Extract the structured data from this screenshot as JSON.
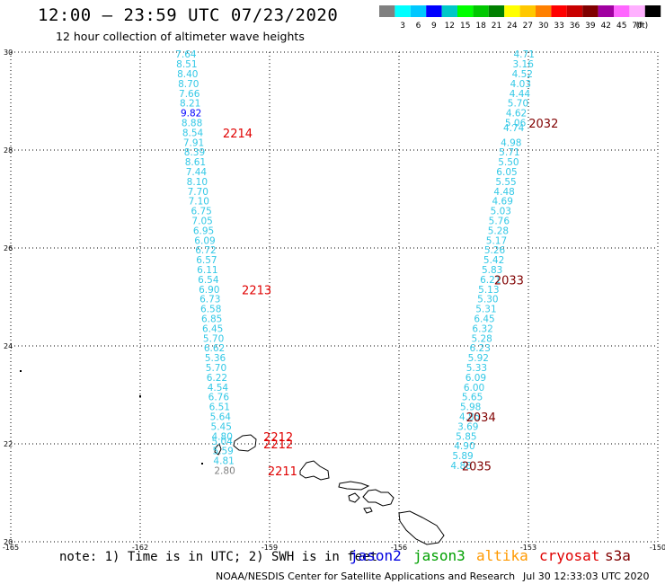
{
  "title": "12:00 – 23:59 UTC 07/23/2020",
  "subtitle": "12 hour collection of altimeter wave heights",
  "colorbar": {
    "unit_label": "(ft)",
    "bins": [
      {
        "label": "",
        "color": "#808080"
      },
      {
        "label": "3",
        "color": "#00ffff"
      },
      {
        "label": "6",
        "color": "#00c8ff"
      },
      {
        "label": "9",
        "color": "#0000ff"
      },
      {
        "label": "12",
        "color": "#00c8c8"
      },
      {
        "label": "15",
        "color": "#00ff00"
      },
      {
        "label": "18",
        "color": "#00c800"
      },
      {
        "label": "21",
        "color": "#008000"
      },
      {
        "label": "24",
        "color": "#ffff00"
      },
      {
        "label": "27",
        "color": "#ffc800"
      },
      {
        "label": "30",
        "color": "#ff8000"
      },
      {
        "label": "33",
        "color": "#ff0000"
      },
      {
        "label": "36",
        "color": "#c80000"
      },
      {
        "label": "39",
        "color": "#800000"
      },
      {
        "label": "42",
        "color": "#a000a0"
      },
      {
        "label": "45",
        "color": "#ff66ff"
      },
      {
        "label": "70",
        "color": "#ffb0ff"
      },
      {
        "label": "",
        "color": "#000000"
      }
    ]
  },
  "axes": {
    "lat_ticks": [
      "30",
      "28",
      "26",
      "24",
      "22",
      "20"
    ],
    "lon_ticks": [
      "-165",
      "-162",
      "-159",
      "-156",
      "-153",
      "-150"
    ],
    "lat_range": [
      20,
      30
    ],
    "lon_range": [
      -165,
      -150
    ]
  },
  "colors": {
    "swh_default": "#33c8e6",
    "swh_high": "#0000ff",
    "swh_low": "#808080",
    "time_west": "#e00000",
    "time_east": "#800000"
  },
  "west_pass": {
    "readings": [
      {
        "lon": -160.94,
        "lat": 29.95,
        "swh": "7.64"
      },
      {
        "lon": -160.92,
        "lat": 29.75,
        "swh": "8.51"
      },
      {
        "lon": -160.9,
        "lat": 29.55,
        "swh": "8.40"
      },
      {
        "lon": -160.88,
        "lat": 29.35,
        "swh": "8.70"
      },
      {
        "lon": -160.86,
        "lat": 29.15,
        "swh": "7.66"
      },
      {
        "lon": -160.84,
        "lat": 28.95,
        "swh": "8.21"
      },
      {
        "lon": -160.82,
        "lat": 28.75,
        "swh": "9.82",
        "level": "high"
      },
      {
        "lon": -160.8,
        "lat": 28.55,
        "swh": "8.88"
      },
      {
        "lon": -160.78,
        "lat": 28.35,
        "swh": "8.54"
      },
      {
        "lon": -160.76,
        "lat": 28.15,
        "swh": "7.91"
      },
      {
        "lon": -160.74,
        "lat": 27.95,
        "swh": "8.39"
      },
      {
        "lon": -160.72,
        "lat": 27.75,
        "swh": "8.61"
      },
      {
        "lon": -160.7,
        "lat": 27.55,
        "swh": "7.44"
      },
      {
        "lon": -160.68,
        "lat": 27.35,
        "swh": "8.10"
      },
      {
        "lon": -160.66,
        "lat": 27.15,
        "swh": "7.70"
      },
      {
        "lon": -160.64,
        "lat": 26.95,
        "swh": "7.10"
      },
      {
        "lon": -160.58,
        "lat": 26.75,
        "swh": "6.75"
      },
      {
        "lon": -160.56,
        "lat": 26.55,
        "swh": "7.05"
      },
      {
        "lon": -160.53,
        "lat": 26.35,
        "swh": "6.95"
      },
      {
        "lon": -160.5,
        "lat": 26.15,
        "swh": "6.09"
      },
      {
        "lon": -160.48,
        "lat": 25.95,
        "swh": "6.72"
      },
      {
        "lon": -160.46,
        "lat": 25.75,
        "swh": "6.57"
      },
      {
        "lon": -160.44,
        "lat": 25.55,
        "swh": "6.11"
      },
      {
        "lon": -160.42,
        "lat": 25.35,
        "swh": "6.54"
      },
      {
        "lon": -160.4,
        "lat": 25.15,
        "swh": "6.90"
      },
      {
        "lon": -160.38,
        "lat": 24.95,
        "swh": "6.73"
      },
      {
        "lon": -160.36,
        "lat": 24.75,
        "swh": "6.58"
      },
      {
        "lon": -160.34,
        "lat": 24.55,
        "swh": "6.85"
      },
      {
        "lon": -160.32,
        "lat": 24.35,
        "swh": "6.45"
      },
      {
        "lon": -160.3,
        "lat": 24.15,
        "swh": "5.70"
      },
      {
        "lon": -160.28,
        "lat": 23.95,
        "swh": "6.62"
      },
      {
        "lon": -160.26,
        "lat": 23.75,
        "swh": "5.36"
      },
      {
        "lon": -160.24,
        "lat": 23.55,
        "swh": "5.70"
      },
      {
        "lon": -160.22,
        "lat": 23.35,
        "swh": "6.22"
      },
      {
        "lon": -160.2,
        "lat": 23.15,
        "swh": "4.54"
      },
      {
        "lon": -160.18,
        "lat": 22.95,
        "swh": "6.76"
      },
      {
        "lon": -160.16,
        "lat": 22.75,
        "swh": "6.51"
      },
      {
        "lon": -160.14,
        "lat": 22.55,
        "swh": "5.64"
      },
      {
        "lon": -160.12,
        "lat": 22.35,
        "swh": "5.45"
      },
      {
        "lon": -160.1,
        "lat": 22.15,
        "swh": "4.80"
      },
      {
        "lon": -160.1,
        "lat": 22.05,
        "swh": "5.04"
      },
      {
        "lon": -160.08,
        "lat": 21.85,
        "swh": "5.59"
      },
      {
        "lon": -160.06,
        "lat": 21.65,
        "swh": "4.81"
      },
      {
        "lon": -160.04,
        "lat": 21.45,
        "swh": "2.80",
        "level": "low"
      }
    ],
    "time_labels": [
      {
        "lon": -159.74,
        "lat": 28.35,
        "text": "2214"
      },
      {
        "lon": -159.3,
        "lat": 25.15,
        "text": "2213"
      },
      {
        "lon": -158.8,
        "lat": 22.15,
        "text": "2212"
      },
      {
        "lon": -158.8,
        "lat": 22.0,
        "text": "2212"
      },
      {
        "lon": -158.7,
        "lat": 21.45,
        "text": "2211"
      }
    ]
  },
  "east_pass": {
    "readings": [
      {
        "lon": -153.1,
        "lat": 29.95,
        "swh": "4.71"
      },
      {
        "lon": -153.12,
        "lat": 29.75,
        "swh": "3.16"
      },
      {
        "lon": -153.14,
        "lat": 29.55,
        "swh": "4.52"
      },
      {
        "lon": -153.18,
        "lat": 29.35,
        "swh": "4.03"
      },
      {
        "lon": -153.2,
        "lat": 29.15,
        "swh": "4.44"
      },
      {
        "lon": -153.24,
        "lat": 28.95,
        "swh": "5.70"
      },
      {
        "lon": -153.28,
        "lat": 28.75,
        "swh": "4.62"
      },
      {
        "lon": -153.3,
        "lat": 28.55,
        "swh": "5.06"
      },
      {
        "lon": -153.34,
        "lat": 28.45,
        "swh": "4.74"
      },
      {
        "lon": -153.4,
        "lat": 28.15,
        "swh": "4.98"
      },
      {
        "lon": -153.44,
        "lat": 27.95,
        "swh": "5.71"
      },
      {
        "lon": -153.46,
        "lat": 27.75,
        "swh": "5.50"
      },
      {
        "lon": -153.5,
        "lat": 27.55,
        "swh": "6.05"
      },
      {
        "lon": -153.52,
        "lat": 27.35,
        "swh": "5.55"
      },
      {
        "lon": -153.56,
        "lat": 27.15,
        "swh": "4.48"
      },
      {
        "lon": -153.6,
        "lat": 26.95,
        "swh": "4.69"
      },
      {
        "lon": -153.64,
        "lat": 26.75,
        "swh": "5.03"
      },
      {
        "lon": -153.68,
        "lat": 26.55,
        "swh": "5.76"
      },
      {
        "lon": -153.7,
        "lat": 26.35,
        "swh": "5.28"
      },
      {
        "lon": -153.74,
        "lat": 26.15,
        "swh": "5.17"
      },
      {
        "lon": -153.78,
        "lat": 25.95,
        "swh": "5.26"
      },
      {
        "lon": -153.8,
        "lat": 25.75,
        "swh": "5.42"
      },
      {
        "lon": -153.84,
        "lat": 25.55,
        "swh": "5.83"
      },
      {
        "lon": -153.88,
        "lat": 25.35,
        "swh": "6.21"
      },
      {
        "lon": -153.92,
        "lat": 25.15,
        "swh": "5.13"
      },
      {
        "lon": -153.94,
        "lat": 24.95,
        "swh": "5.30"
      },
      {
        "lon": -153.98,
        "lat": 24.75,
        "swh": "5.31"
      },
      {
        "lon": -154.02,
        "lat": 24.55,
        "swh": "6.45"
      },
      {
        "lon": -154.06,
        "lat": 24.35,
        "swh": "6.32"
      },
      {
        "lon": -154.08,
        "lat": 24.15,
        "swh": "5.28"
      },
      {
        "lon": -154.12,
        "lat": 23.95,
        "swh": "6.23"
      },
      {
        "lon": -154.16,
        "lat": 23.75,
        "swh": "5.92"
      },
      {
        "lon": -154.2,
        "lat": 23.55,
        "swh": "5.33"
      },
      {
        "lon": -154.22,
        "lat": 23.35,
        "swh": "6.09"
      },
      {
        "lon": -154.26,
        "lat": 23.15,
        "swh": "6.00"
      },
      {
        "lon": -154.3,
        "lat": 22.95,
        "swh": "5.65"
      },
      {
        "lon": -154.34,
        "lat": 22.75,
        "swh": "5.98"
      },
      {
        "lon": -154.36,
        "lat": 22.55,
        "swh": "4.85"
      },
      {
        "lon": -154.4,
        "lat": 22.35,
        "swh": "3.69"
      },
      {
        "lon": -154.44,
        "lat": 22.15,
        "swh": "5.85"
      },
      {
        "lon": -154.48,
        "lat": 21.95,
        "swh": "4.90"
      },
      {
        "lon": -154.52,
        "lat": 21.75,
        "swh": "5.89"
      },
      {
        "lon": -154.56,
        "lat": 21.55,
        "swh": "4.88"
      }
    ],
    "time_labels": [
      {
        "lon": -152.65,
        "lat": 28.55,
        "text": "2032"
      },
      {
        "lon": -153.45,
        "lat": 25.35,
        "text": "2033"
      },
      {
        "lon": -154.1,
        "lat": 22.55,
        "text": "2034"
      },
      {
        "lon": -154.2,
        "lat": 21.55,
        "text": "2035"
      }
    ]
  },
  "footer": {
    "note": "note: 1) Time is in UTC; 2) SWH is in feet",
    "legend": [
      {
        "text": "jason2",
        "color": "#0000e0"
      },
      {
        "text": "jason3",
        "color": "#00a000"
      },
      {
        "text": "altika",
        "color": "#ff9900"
      },
      {
        "text": "cryosat",
        "color": "#e00000"
      },
      {
        "text": "s3a",
        "color": "#800000"
      }
    ],
    "credit": "NOAA/NESDIS Center for Satellite Applications and Research",
    "timestamp": "Jul 30 12:33:03 UTC 2020"
  }
}
